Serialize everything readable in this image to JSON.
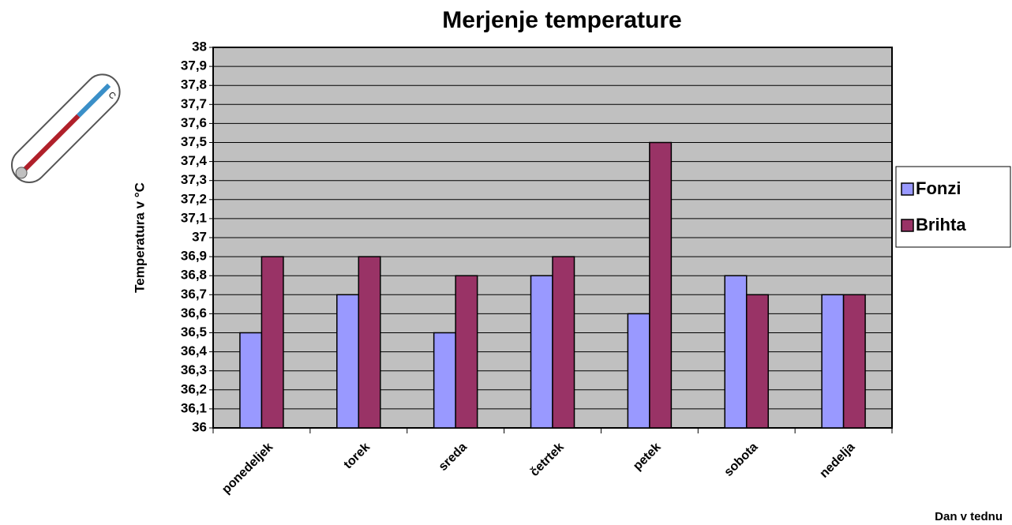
{
  "chart_data": {
    "type": "bar",
    "title": "Merjenje temperature",
    "y_label": "Temperatura v °C",
    "x_label": "Dan v tednu",
    "categories": [
      "ponedeljek",
      "torek",
      "sreda",
      "četrtek",
      "petek",
      "sobota",
      "nedelja"
    ],
    "series": [
      {
        "name": "Fonzi",
        "color": "#9999ff",
        "values": [
          36.5,
          36.7,
          36.5,
          36.8,
          36.6,
          36.8,
          36.7
        ]
      },
      {
        "name": "Brihta",
        "color": "#993366",
        "values": [
          36.9,
          36.9,
          36.8,
          36.9,
          37.5,
          36.7,
          36.7
        ]
      }
    ],
    "ylim": [
      36,
      38
    ],
    "yticks": [
      36,
      {
        "value": 36.1,
        "label": "36,1"
      },
      {
        "value": 36.2,
        "label": "36,2"
      },
      {
        "value": 36.3,
        "label": "36,3"
      },
      {
        "value": 36.4,
        "label": "36,4"
      },
      {
        "value": 36.5,
        "label": "36,5"
      },
      {
        "value": 36.6,
        "label": "36,6"
      },
      {
        "value": 36.7,
        "label": "36,7"
      },
      {
        "value": 36.8,
        "label": "36,8"
      },
      {
        "value": 36.9,
        "label": "36,9"
      },
      37,
      {
        "value": 37.1,
        "label": "37,1"
      },
      {
        "value": 37.2,
        "label": "37,2"
      },
      {
        "value": 37.3,
        "label": "37,3"
      },
      {
        "value": 37.4,
        "label": "37,4"
      },
      {
        "value": 37.5,
        "label": "37,5"
      },
      {
        "value": 37.6,
        "label": "37,6"
      },
      {
        "value": 37.7,
        "label": "37,7"
      },
      {
        "value": 37.8,
        "label": "37,8"
      },
      {
        "value": 37.9,
        "label": "37,9"
      },
      38
    ],
    "grid": true,
    "plot_background": "#c0c0c0",
    "legend_position": "right"
  }
}
